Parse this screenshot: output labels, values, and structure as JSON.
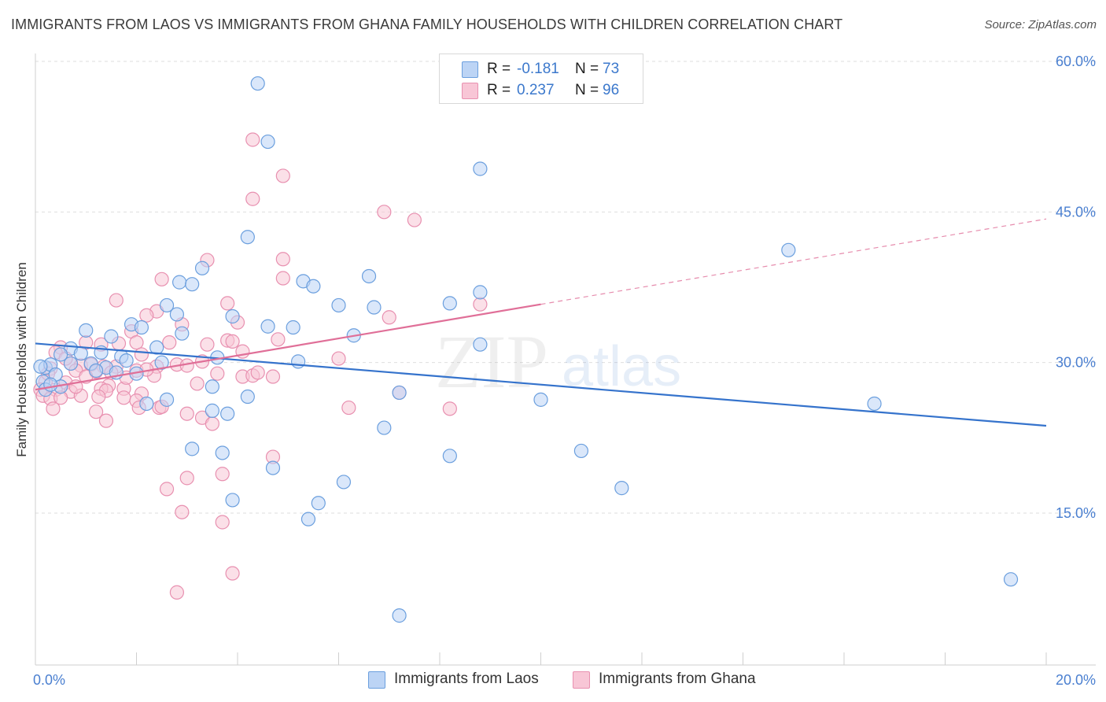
{
  "title": "IMMIGRANTS FROM LAOS VS IMMIGRANTS FROM GHANA FAMILY HOUSEHOLDS WITH CHILDREN CORRELATION CHART",
  "source": "Source: ZipAtlas.com",
  "watermark": {
    "zip": "ZIP",
    "atlas": "atlas"
  },
  "colors": {
    "laos_fill": "#bcd4f5",
    "laos_stroke": "#6b9fde",
    "laos_line": "#3573cc",
    "ghana_fill": "#f8c6d6",
    "ghana_stroke": "#e890b0",
    "ghana_line": "#e06f98",
    "axis_text": "#4a7fd0",
    "grid": "#dedede"
  },
  "legend": {
    "laos": {
      "r_label": "R =",
      "r_value": "-0.181",
      "n_label": "N =",
      "n_value": "73"
    },
    "ghana": {
      "r_label": "R =",
      "r_value": "0.237",
      "n_label": "N =",
      "n_value": "96"
    }
  },
  "bottom_legend": {
    "laos": "Immigrants from Laos",
    "ghana": "Immigrants from Ghana"
  },
  "chart_data": {
    "type": "scatter",
    "title": "IMMIGRANTS FROM LAOS VS IMMIGRANTS FROM GHANA FAMILY HOUSEHOLDS WITH CHILDREN CORRELATION CHART",
    "xlabel": "",
    "ylabel": "Family Households with Children",
    "xlim": [
      0,
      20
    ],
    "ylim": [
      0,
      63
    ],
    "x_tick_labels": [
      "0.0%",
      "20.0%"
    ],
    "y_ticks": [
      15,
      30,
      45,
      60
    ],
    "y_tick_labels": [
      "15.0%",
      "30.0%",
      "45.0%",
      "60.0%"
    ],
    "grid": "horizontal dashed",
    "legend_position": "top-center",
    "series": [
      {
        "name": "Immigrants from Laos",
        "R": -0.181,
        "N": 73,
        "trend": {
          "x": [
            0,
            20
          ],
          "y": [
            31.9,
            23.7
          ],
          "dashed_from": null
        },
        "points": [
          [
            4.4,
            57.8
          ],
          [
            4.6,
            52
          ],
          [
            8.8,
            49.3
          ],
          [
            14.9,
            41.2
          ],
          [
            4.2,
            42.5
          ],
          [
            3.3,
            39.4
          ],
          [
            6.6,
            38.6
          ],
          [
            2.85,
            38
          ],
          [
            3.1,
            37.8
          ],
          [
            5.3,
            38.1
          ],
          [
            5.5,
            37.6
          ],
          [
            8.8,
            37
          ],
          [
            2.6,
            35.7
          ],
          [
            6.0,
            35.7
          ],
          [
            6.7,
            35.5
          ],
          [
            8.2,
            35.9
          ],
          [
            2.8,
            34.8
          ],
          [
            3.9,
            34.6
          ],
          [
            1.9,
            33.8
          ],
          [
            2.1,
            33.5
          ],
          [
            1.0,
            33.2
          ],
          [
            4.6,
            33.6
          ],
          [
            5.1,
            33.5
          ],
          [
            2.9,
            32.9
          ],
          [
            6.3,
            32.7
          ],
          [
            1.5,
            32.6
          ],
          [
            8.8,
            31.8
          ],
          [
            2.4,
            31.5
          ],
          [
            0.7,
            31.4
          ],
          [
            1.3,
            31
          ],
          [
            0.9,
            30.9
          ],
          [
            1.7,
            30.6
          ],
          [
            0.5,
            30.8
          ],
          [
            1.8,
            30.2
          ],
          [
            3.6,
            30.5
          ],
          [
            2.5,
            30.0
          ],
          [
            5.2,
            30.1
          ],
          [
            0.2,
            29.5
          ],
          [
            0.3,
            29.8
          ],
          [
            0.7,
            29.9
          ],
          [
            1.1,
            29.9
          ],
          [
            1.4,
            29.5
          ],
          [
            1.2,
            29.2
          ],
          [
            1.6,
            29
          ],
          [
            2.0,
            28.9
          ],
          [
            0.4,
            28.8
          ],
          [
            0.15,
            28.1
          ],
          [
            0.5,
            27.6
          ],
          [
            0.2,
            27.3
          ],
          [
            3.5,
            27.6
          ],
          [
            7.2,
            27
          ],
          [
            4.2,
            26.6
          ],
          [
            2.6,
            26.3
          ],
          [
            2.2,
            25.9
          ],
          [
            10.0,
            26.3
          ],
          [
            16.6,
            25.9
          ],
          [
            3.5,
            25.2
          ],
          [
            3.8,
            24.9
          ],
          [
            6.9,
            23.5
          ],
          [
            3.1,
            21.4
          ],
          [
            3.7,
            21
          ],
          [
            8.2,
            20.7
          ],
          [
            10.8,
            21.2
          ],
          [
            4.7,
            19.5
          ],
          [
            6.1,
            18.1
          ],
          [
            11.6,
            17.5
          ],
          [
            3.9,
            16.3
          ],
          [
            5.6,
            16
          ],
          [
            5.4,
            14.4
          ],
          [
            19.3,
            8.4
          ],
          [
            7.2,
            4.8
          ],
          [
            0.1,
            29.6
          ],
          [
            0.3,
            27.8
          ]
        ]
      },
      {
        "name": "Immigrants from Ghana",
        "R": 0.237,
        "N": 96,
        "trend": {
          "x": [
            0,
            20
          ],
          "y": [
            27.3,
            44.3
          ],
          "dashed_from": 10.0
        },
        "points": [
          [
            4.3,
            52.2
          ],
          [
            4.9,
            48.6
          ],
          [
            4.3,
            46.3
          ],
          [
            6.9,
            45
          ],
          [
            7.5,
            44.2
          ],
          [
            3.4,
            40.2
          ],
          [
            4.9,
            40.3
          ],
          [
            2.5,
            38.3
          ],
          [
            4.9,
            38.4
          ],
          [
            1.6,
            36.2
          ],
          [
            3.8,
            35.9
          ],
          [
            8.8,
            35.8
          ],
          [
            2.4,
            35.1
          ],
          [
            2.2,
            34.7
          ],
          [
            7.0,
            34.5
          ],
          [
            4.0,
            34
          ],
          [
            2.9,
            33.8
          ],
          [
            1.9,
            33.1
          ],
          [
            3.8,
            32.2
          ],
          [
            3.9,
            32.1
          ],
          [
            4.8,
            32.3
          ],
          [
            2.65,
            32.0
          ],
          [
            3.4,
            31.8
          ],
          [
            1.0,
            32.0
          ],
          [
            1.3,
            31.8
          ],
          [
            1.65,
            31.9
          ],
          [
            2.0,
            32.0
          ],
          [
            0.5,
            31.5
          ],
          [
            0.4,
            31
          ],
          [
            2.1,
            30.8
          ],
          [
            4.1,
            31.1
          ],
          [
            6.0,
            30.4
          ],
          [
            0.7,
            29.9
          ],
          [
            0.9,
            29.7
          ],
          [
            1.1,
            29.8
          ],
          [
            1.35,
            29.6
          ],
          [
            1.6,
            29.6
          ],
          [
            2.4,
            29.6
          ],
          [
            2.8,
            29.8
          ],
          [
            3.0,
            29.7
          ],
          [
            0.3,
            29.4
          ],
          [
            0.8,
            29.2
          ],
          [
            1.2,
            29.1
          ],
          [
            1.5,
            29.0
          ],
          [
            2.0,
            29.2
          ],
          [
            2.35,
            28.7
          ],
          [
            3.6,
            28.9
          ],
          [
            4.1,
            28.6
          ],
          [
            4.3,
            28.7
          ],
          [
            4.7,
            28.6
          ],
          [
            0.2,
            28.1
          ],
          [
            0.6,
            28.0
          ],
          [
            3.2,
            27.9
          ],
          [
            1.45,
            27.7
          ],
          [
            0.1,
            27.3
          ],
          [
            0.4,
            27.3
          ],
          [
            0.7,
            27.1
          ],
          [
            1.3,
            27.4
          ],
          [
            1.4,
            27.2
          ],
          [
            1.75,
            27.4
          ],
          [
            0.15,
            26.7
          ],
          [
            0.3,
            26.4
          ],
          [
            0.5,
            26.5
          ],
          [
            0.9,
            26.7
          ],
          [
            1.25,
            26.6
          ],
          [
            2.1,
            26.9
          ],
          [
            1.75,
            26.5
          ],
          [
            2.0,
            26.2
          ],
          [
            2.45,
            25.5
          ],
          [
            0.35,
            25.4
          ],
          [
            1.2,
            25.1
          ],
          [
            2.05,
            25.5
          ],
          [
            2.5,
            25.6
          ],
          [
            6.2,
            25.5
          ],
          [
            8.2,
            25.4
          ],
          [
            3.0,
            24.9
          ],
          [
            3.3,
            24.5
          ],
          [
            3.5,
            23.9
          ],
          [
            1.4,
            24.2
          ],
          [
            3.7,
            18.9
          ],
          [
            4.7,
            20.6
          ],
          [
            3.0,
            18.5
          ],
          [
            2.6,
            17.4
          ],
          [
            2.9,
            15.1
          ],
          [
            3.7,
            14.1
          ],
          [
            3.9,
            9.0
          ],
          [
            2.8,
            7.1
          ],
          [
            7.2,
            27.0
          ],
          [
            1.8,
            28.5
          ],
          [
            3.3,
            30.1
          ],
          [
            2.2,
            29.3
          ],
          [
            0.6,
            30.4
          ],
          [
            1.0,
            28.6
          ],
          [
            0.25,
            28.9
          ],
          [
            4.4,
            29.0
          ],
          [
            0.8,
            27.6
          ]
        ]
      }
    ]
  }
}
